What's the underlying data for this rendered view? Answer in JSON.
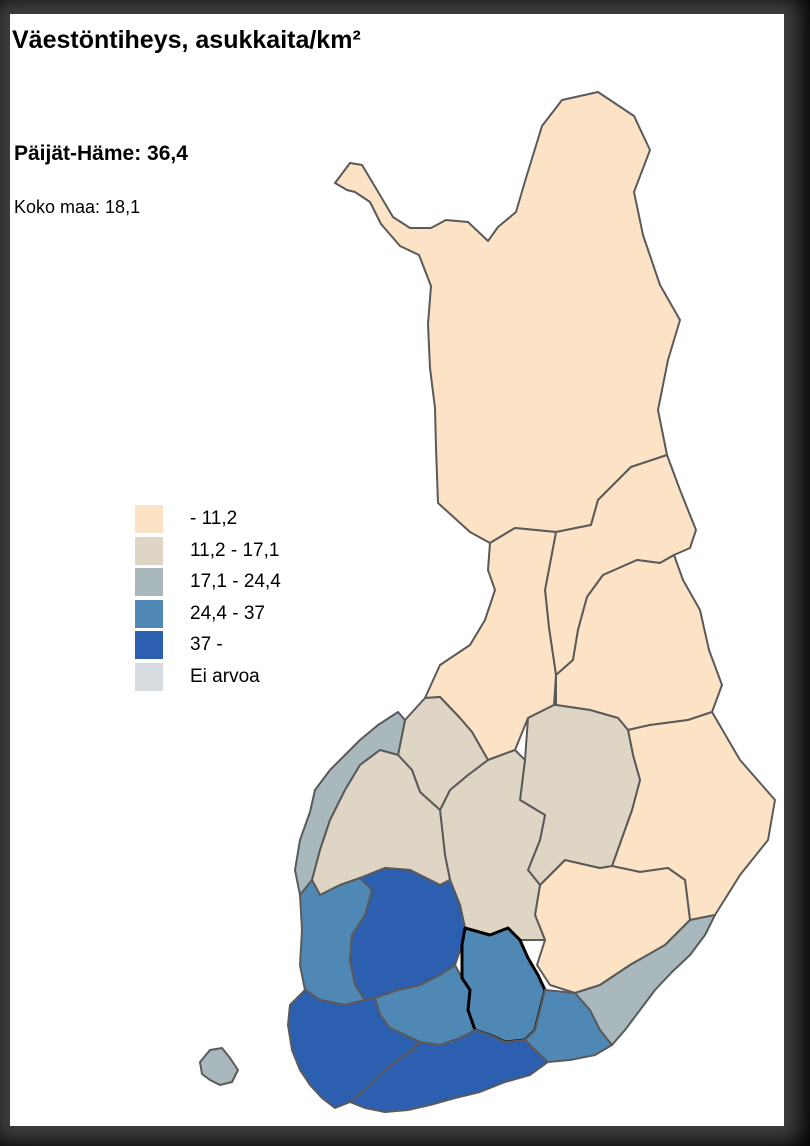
{
  "title": "Väestöntiheys, asukkaita/km²",
  "selected_region": {
    "name": "Päijät-Häme",
    "value": "36,4",
    "label": "Päijät-Häme: 36,4"
  },
  "country": {
    "name": "Koko maa",
    "value": "18,1",
    "label": "Koko maa: 18,1"
  },
  "legend": [
    {
      "label": "- 11,2",
      "color": "#fde3c5"
    },
    {
      "label": "11,2 - 17,1",
      "color": "#dfd5c5"
    },
    {
      "label": "17,1 - 24,4",
      "color": "#a8b8bc"
    },
    {
      "label": "24,4 - 37",
      "color": "#4f88b5"
    },
    {
      "label": "37 -",
      "color": "#2c5faf"
    },
    {
      "label": "Ei arvoa",
      "color": "#d8dbe0"
    }
  ],
  "colors": {
    "class1": "#fde3c5",
    "class2": "#dfd5c5",
    "class3": "#a8b8bc",
    "class4": "#4f88b5",
    "class5": "#2c5faf",
    "border": "#5a5a5a",
    "selected_border": "#000000"
  }
}
